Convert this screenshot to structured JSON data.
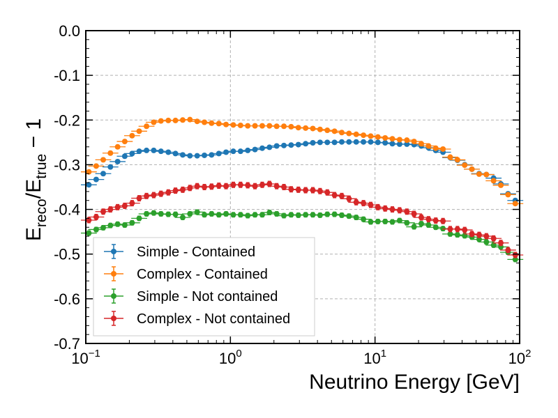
{
  "chart_data": {
    "type": "scatter",
    "title": "",
    "xlabel": "Neutrino Energy [GeV]",
    "ylabel": {
      "base": "E",
      "sub_reco": "reco",
      "slash": "/E",
      "sub_true": "true",
      "tail": " − 1"
    },
    "xscale": "log",
    "xlim": [
      0.1,
      100
    ],
    "ylim": [
      -0.7,
      0.0
    ],
    "grid": true,
    "legend_position": "lower-left",
    "x_tick_labels": [
      {
        "base": "10",
        "exp": "−1"
      },
      {
        "base": "10",
        "exp": "0"
      },
      {
        "base": "10",
        "exp": "1"
      },
      {
        "base": "10",
        "exp": "2"
      }
    ],
    "y_tick_labels": [
      "0.0",
      "-0.1",
      "-0.2",
      "-0.3",
      "-0.4",
      "-0.5",
      "-0.6",
      "-0.7"
    ],
    "y_ticks": [
      0.0,
      -0.1,
      -0.2,
      -0.3,
      -0.4,
      -0.5,
      -0.6,
      -0.7
    ],
    "series": [
      {
        "name": "Simple - Contained",
        "color": "#1f77b4",
        "x": [
          0.105,
          0.118,
          0.132,
          0.148,
          0.166,
          0.186,
          0.209,
          0.234,
          0.263,
          0.295,
          0.331,
          0.372,
          0.417,
          0.468,
          0.525,
          0.589,
          0.661,
          0.741,
          0.832,
          0.933,
          1.047,
          1.175,
          1.318,
          1.479,
          1.66,
          1.862,
          2.089,
          2.344,
          2.63,
          2.951,
          3.311,
          3.715,
          4.169,
          4.677,
          5.248,
          5.888,
          6.607,
          7.413,
          8.318,
          9.333,
          10.47,
          11.75,
          13.18,
          14.79,
          16.6,
          18.62,
          20.89,
          23.44,
          26.3,
          29.51,
          33.11,
          37.15,
          41.69,
          46.77,
          52.48,
          58.88,
          66.07,
          74.13,
          83.18,
          93.33
        ],
        "y": [
          -0.345,
          -0.333,
          -0.32,
          -0.305,
          -0.293,
          -0.281,
          -0.275,
          -0.27,
          -0.268,
          -0.268,
          -0.27,
          -0.272,
          -0.275,
          -0.278,
          -0.28,
          -0.28,
          -0.279,
          -0.278,
          -0.275,
          -0.272,
          -0.27,
          -0.27,
          -0.268,
          -0.266,
          -0.263,
          -0.261,
          -0.258,
          -0.257,
          -0.256,
          -0.255,
          -0.253,
          -0.251,
          -0.25,
          -0.25,
          -0.25,
          -0.249,
          -0.249,
          -0.249,
          -0.249,
          -0.249,
          -0.25,
          -0.251,
          -0.253,
          -0.254,
          -0.254,
          -0.255,
          -0.258,
          -0.262,
          -0.268,
          -0.272,
          -0.284,
          -0.29,
          -0.3,
          -0.31,
          -0.32,
          -0.322,
          -0.33,
          -0.343,
          -0.365,
          -0.38
        ],
        "xerr": 0.055,
        "yerr": 0.004
      },
      {
        "name": "Complex - Contained",
        "color": "#ff7f0e",
        "x": [
          0.105,
          0.118,
          0.132,
          0.148,
          0.166,
          0.186,
          0.209,
          0.234,
          0.263,
          0.295,
          0.331,
          0.372,
          0.417,
          0.468,
          0.525,
          0.589,
          0.661,
          0.741,
          0.832,
          0.933,
          1.047,
          1.175,
          1.318,
          1.479,
          1.66,
          1.862,
          2.089,
          2.344,
          2.63,
          2.951,
          3.311,
          3.715,
          4.169,
          4.677,
          5.248,
          5.888,
          6.607,
          7.413,
          8.318,
          9.333,
          10.47,
          11.75,
          13.18,
          14.79,
          16.6,
          18.62,
          20.89,
          23.44,
          26.3,
          29.51,
          33.11,
          37.15,
          41.69,
          46.77,
          52.48,
          58.88,
          66.07,
          74.13,
          83.18,
          93.33
        ],
        "y": [
          -0.316,
          -0.303,
          -0.289,
          -0.274,
          -0.26,
          -0.248,
          -0.235,
          -0.225,
          -0.214,
          -0.205,
          -0.202,
          -0.201,
          -0.201,
          -0.2,
          -0.199,
          -0.203,
          -0.205,
          -0.207,
          -0.208,
          -0.21,
          -0.211,
          -0.212,
          -0.213,
          -0.213,
          -0.213,
          -0.213,
          -0.214,
          -0.214,
          -0.215,
          -0.217,
          -0.218,
          -0.219,
          -0.221,
          -0.223,
          -0.225,
          -0.228,
          -0.23,
          -0.232,
          -0.234,
          -0.236,
          -0.238,
          -0.24,
          -0.242,
          -0.244,
          -0.245,
          -0.248,
          -0.253,
          -0.258,
          -0.263,
          -0.265,
          -0.283,
          -0.289,
          -0.301,
          -0.31,
          -0.321,
          -0.322,
          -0.336,
          -0.346,
          -0.367,
          -0.387
        ],
        "xerr": 0.055,
        "yerr": 0.004
      },
      {
        "name": "Simple - Not contained",
        "color": "#2ca02c",
        "x": [
          0.105,
          0.118,
          0.132,
          0.148,
          0.166,
          0.186,
          0.209,
          0.234,
          0.263,
          0.295,
          0.331,
          0.372,
          0.417,
          0.468,
          0.525,
          0.589,
          0.661,
          0.741,
          0.832,
          0.933,
          1.047,
          1.175,
          1.318,
          1.479,
          1.66,
          1.862,
          2.089,
          2.344,
          2.63,
          2.951,
          3.311,
          3.715,
          4.169,
          4.677,
          5.248,
          5.888,
          6.607,
          7.413,
          8.318,
          9.333,
          10.47,
          11.75,
          13.18,
          14.79,
          16.6,
          18.62,
          20.89,
          23.44,
          26.3,
          29.51,
          33.11,
          37.15,
          41.69,
          46.77,
          52.48,
          58.88,
          66.07,
          74.13,
          83.18,
          93.33
        ],
        "y": [
          -0.453,
          -0.445,
          -0.441,
          -0.436,
          -0.433,
          -0.435,
          -0.43,
          -0.42,
          -0.41,
          -0.408,
          -0.41,
          -0.411,
          -0.411,
          -0.418,
          -0.41,
          -0.406,
          -0.412,
          -0.41,
          -0.412,
          -0.41,
          -0.412,
          -0.412,
          -0.414,
          -0.412,
          -0.412,
          -0.407,
          -0.41,
          -0.414,
          -0.412,
          -0.413,
          -0.412,
          -0.412,
          -0.413,
          -0.411,
          -0.411,
          -0.413,
          -0.415,
          -0.418,
          -0.422,
          -0.428,
          -0.427,
          -0.427,
          -0.428,
          -0.425,
          -0.43,
          -0.439,
          -0.432,
          -0.435,
          -0.44,
          -0.443,
          -0.455,
          -0.457,
          -0.459,
          -0.462,
          -0.467,
          -0.473,
          -0.48,
          -0.484,
          -0.496,
          -0.512
        ],
        "xerr": 0.055,
        "yerr": 0.005
      },
      {
        "name": "Complex - Not contained",
        "color": "#d62728",
        "x": [
          0.105,
          0.118,
          0.132,
          0.148,
          0.166,
          0.186,
          0.209,
          0.234,
          0.263,
          0.295,
          0.331,
          0.372,
          0.417,
          0.468,
          0.525,
          0.589,
          0.661,
          0.741,
          0.832,
          0.933,
          1.047,
          1.175,
          1.318,
          1.479,
          1.66,
          1.862,
          2.089,
          2.344,
          2.63,
          2.951,
          3.311,
          3.715,
          4.169,
          4.677,
          5.248,
          5.888,
          6.607,
          7.413,
          8.318,
          9.333,
          10.47,
          11.75,
          13.18,
          14.79,
          16.6,
          18.62,
          20.89,
          23.44,
          26.3,
          29.51,
          33.11,
          37.15,
          41.69,
          46.77,
          52.48,
          58.88,
          66.07,
          74.13,
          83.18,
          93.33
        ],
        "y": [
          -0.424,
          -0.417,
          -0.405,
          -0.4,
          -0.395,
          -0.392,
          -0.386,
          -0.375,
          -0.37,
          -0.368,
          -0.365,
          -0.362,
          -0.358,
          -0.356,
          -0.352,
          -0.348,
          -0.35,
          -0.349,
          -0.347,
          -0.348,
          -0.345,
          -0.345,
          -0.346,
          -0.348,
          -0.345,
          -0.343,
          -0.348,
          -0.35,
          -0.355,
          -0.356,
          -0.357,
          -0.357,
          -0.359,
          -0.362,
          -0.368,
          -0.37,
          -0.376,
          -0.384,
          -0.386,
          -0.39,
          -0.395,
          -0.398,
          -0.4,
          -0.402,
          -0.405,
          -0.41,
          -0.418,
          -0.422,
          -0.425,
          -0.426,
          -0.444,
          -0.444,
          -0.446,
          -0.455,
          -0.457,
          -0.46,
          -0.465,
          -0.475,
          -0.491,
          -0.502
        ],
        "xerr": 0.055,
        "yerr": 0.006
      }
    ]
  }
}
